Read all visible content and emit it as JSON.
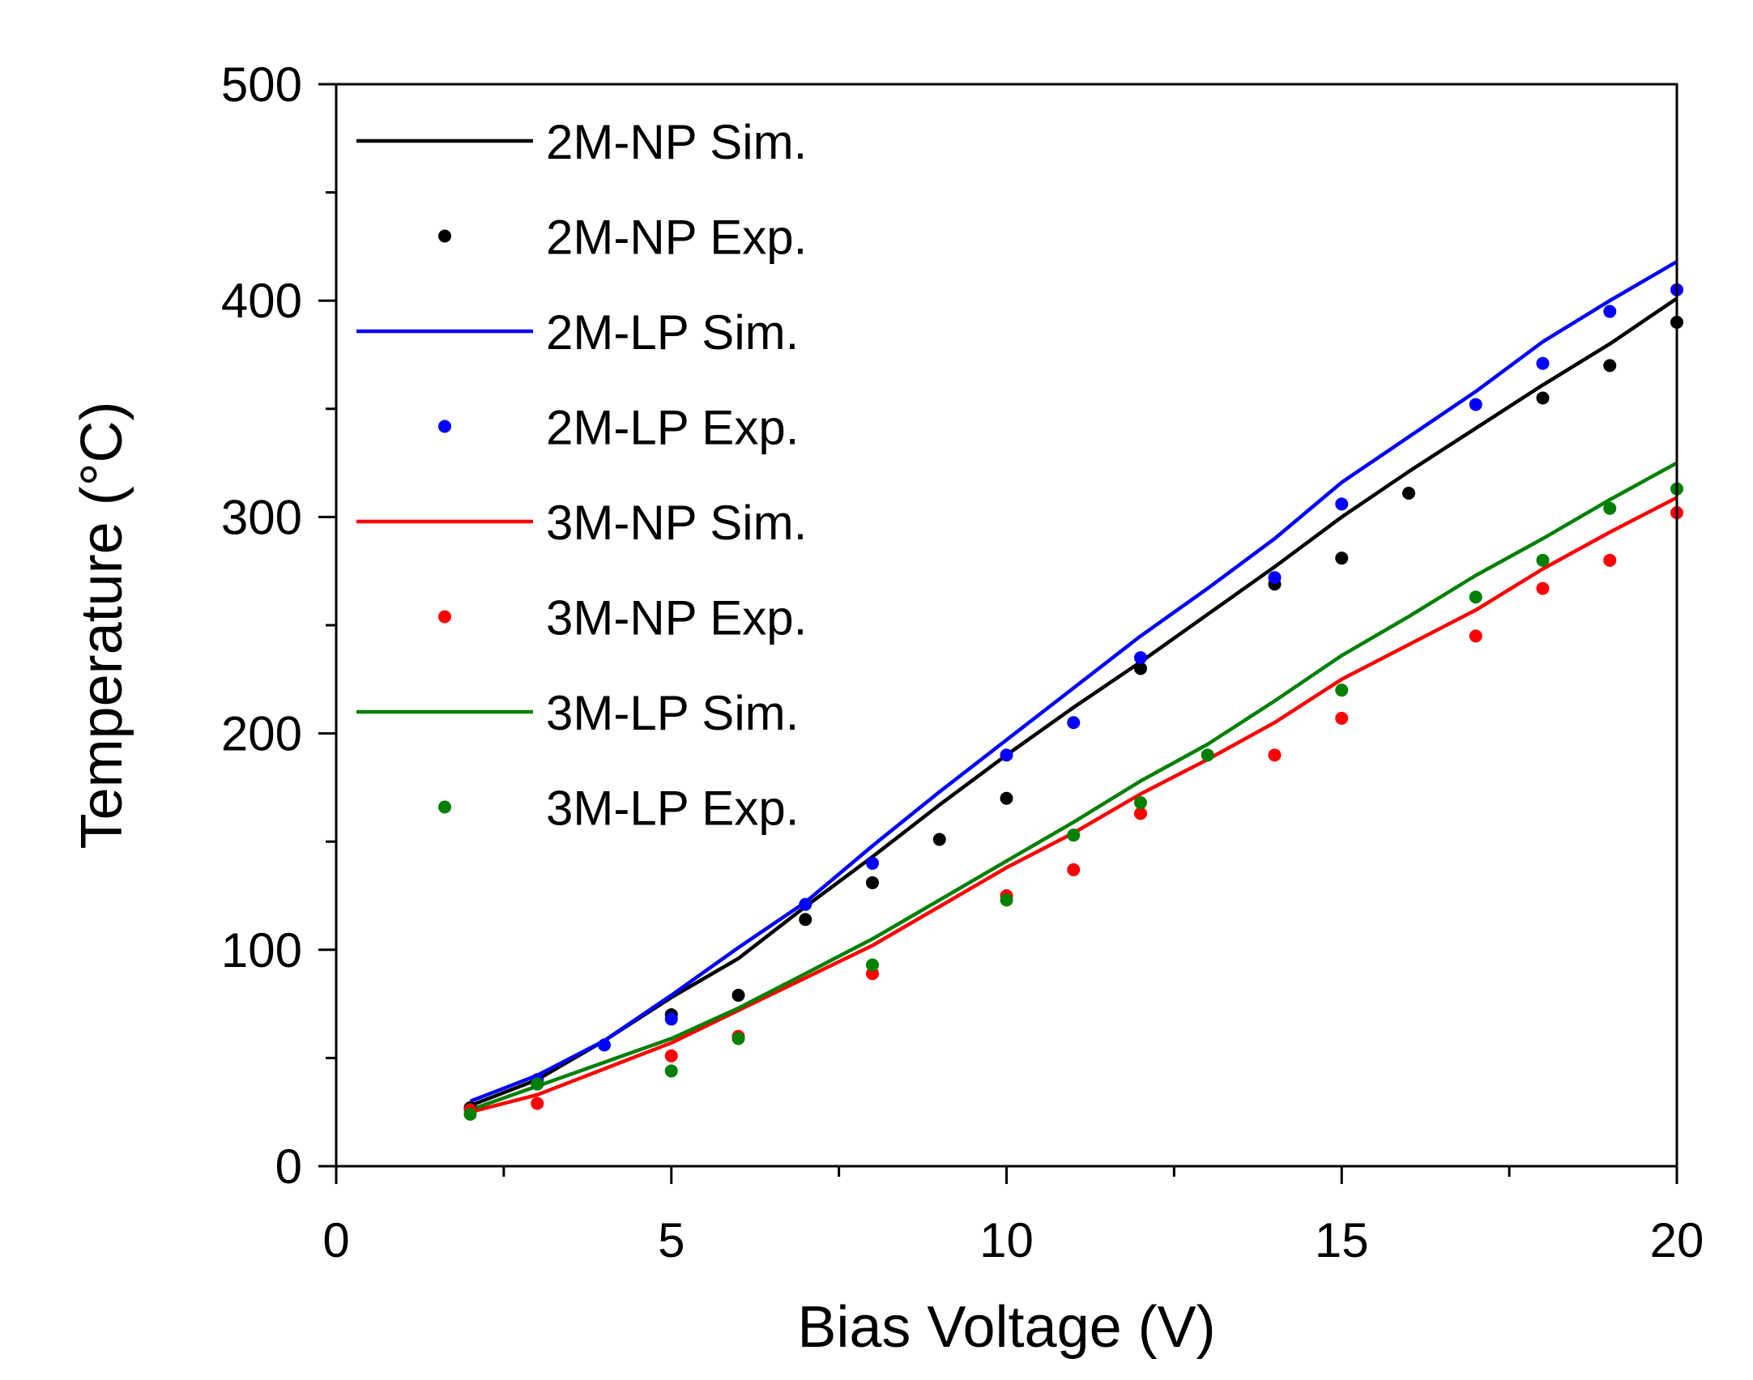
{
  "chart_data": {
    "type": "line",
    "title": "",
    "xlabel": "Bias Voltage (V)",
    "ylabel": "Temperature (°C)",
    "xlim": [
      0,
      20
    ],
    "ylim": [
      0,
      500
    ],
    "xticks": [
      0,
      5,
      10,
      15,
      20
    ],
    "yticks": [
      0,
      100,
      200,
      300,
      400,
      500
    ],
    "grid": false,
    "legend_position": "top-left",
    "series": [
      {
        "name": "2M-NP Sim.",
        "kind": "line",
        "color": "#000000",
        "x": [
          2,
          3,
          4,
          5,
          6,
          7,
          8,
          9,
          10,
          11,
          12,
          13,
          14,
          15,
          16,
          17,
          18,
          19,
          20
        ],
        "y": [
          28,
          40,
          58,
          78,
          96,
          120,
          143,
          167,
          190,
          212,
          233,
          255,
          277,
          300,
          321,
          341,
          361,
          380,
          401
        ]
      },
      {
        "name": "2M-NP Exp.",
        "kind": "scatter",
        "color": "#000000",
        "x": [
          2,
          3,
          5,
          6,
          7,
          8,
          9,
          10,
          12,
          14,
          15,
          16,
          18,
          19,
          20
        ],
        "y": [
          27,
          38,
          70,
          79,
          114,
          131,
          151,
          170,
          230,
          269,
          281,
          311,
          355,
          370,
          390
        ]
      },
      {
        "name": "2M-LP Sim.",
        "kind": "line",
        "color": "#0000ff",
        "x": [
          2,
          3,
          4,
          5,
          6,
          7,
          8,
          9,
          10,
          11,
          12,
          13,
          14,
          15,
          16,
          17,
          18,
          19,
          20
        ],
        "y": [
          30,
          42,
          58,
          79,
          101,
          122,
          148,
          173,
          197,
          221,
          245,
          267,
          290,
          316,
          337,
          358,
          381,
          400,
          418
        ]
      },
      {
        "name": "2M-LP Exp.",
        "kind": "scatter",
        "color": "#0000ff",
        "x": [
          3,
          4,
          5,
          7,
          8,
          10,
          11,
          12,
          14,
          15,
          17,
          18,
          19,
          20
        ],
        "y": [
          40,
          56,
          68,
          121,
          140,
          190,
          205,
          235,
          272,
          306,
          352,
          371,
          395,
          405
        ]
      },
      {
        "name": "3M-NP Sim.",
        "kind": "line",
        "color": "#ff0000",
        "x": [
          2,
          3,
          4,
          5,
          6,
          7,
          8,
          9,
          10,
          11,
          12,
          13,
          14,
          15,
          16,
          17,
          18,
          19,
          20
        ],
        "y": [
          25,
          33,
          45,
          57,
          72,
          87,
          102,
          120,
          138,
          154,
          172,
          188,
          205,
          225,
          241,
          257,
          276,
          293,
          309
        ]
      },
      {
        "name": "3M-NP Exp.",
        "kind": "scatter",
        "color": "#ff0000",
        "x": [
          2,
          3,
          5,
          6,
          8,
          10,
          11,
          12,
          14,
          15,
          17,
          18,
          19,
          20
        ],
        "y": [
          26,
          29,
          51,
          60,
          89,
          125,
          137,
          163,
          190,
          207,
          245,
          267,
          280,
          302
        ]
      },
      {
        "name": "3M-LP Sim.",
        "kind": "line",
        "color": "#008000",
        "x": [
          2,
          3,
          4,
          5,
          6,
          7,
          8,
          9,
          10,
          11,
          12,
          13,
          14,
          15,
          16,
          17,
          18,
          19,
          20
        ],
        "y": [
          26,
          37,
          48,
          59,
          73,
          89,
          105,
          123,
          141,
          159,
          178,
          195,
          215,
          236,
          254,
          273,
          290,
          308,
          325
        ]
      },
      {
        "name": "3M-LP Exp.",
        "kind": "scatter",
        "color": "#008000",
        "x": [
          2,
          3,
          5,
          6,
          8,
          10,
          11,
          12,
          13,
          15,
          17,
          18,
          19,
          20
        ],
        "y": [
          24,
          38,
          44,
          59,
          93,
          123,
          153,
          168,
          190,
          220,
          263,
          280,
          304,
          313
        ]
      }
    ]
  }
}
